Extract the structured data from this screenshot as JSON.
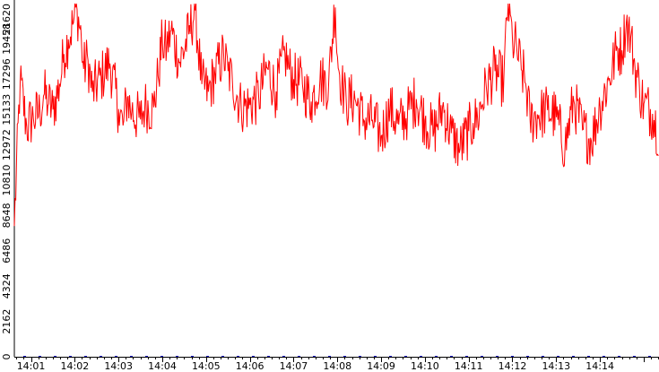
{
  "chart_data": {
    "type": "line",
    "title": "",
    "xlabel": "",
    "ylabel": "",
    "ylim": [
      0,
      21620
    ],
    "yticks": [
      "0",
      "2162",
      "4324",
      "6486",
      "8648",
      "10810",
      "12972",
      "15133",
      "17296",
      "19458",
      "21620"
    ],
    "xticks": [
      "14:01",
      "14:02",
      "14:03",
      "14:04",
      "14:05",
      "14:06",
      "14:07",
      "14:08",
      "14:09",
      "14:10",
      "14:11",
      "14:12",
      "14:13",
      "14:14"
    ],
    "xlim_minutes": [
      0.62,
      15.35
    ],
    "grid": false,
    "legend": "none",
    "colors": {
      "line": "#ff0000",
      "axis": "#000000",
      "baseline_dots": "#0000c0"
    },
    "series": [
      {
        "x_minutes": [
          0.62,
          0.75,
          0.9,
          1.05,
          1.2,
          1.3,
          1.4,
          1.5,
          1.65,
          1.75,
          1.85,
          1.95,
          2.05,
          2.15,
          2.2,
          2.3,
          2.4,
          2.6,
          2.8,
          3.0,
          3.1,
          3.2,
          3.3,
          3.5,
          3.6,
          3.8,
          3.9,
          4.0,
          4.1,
          4.2,
          4.4,
          4.6,
          4.75,
          4.9,
          5.05,
          5.2,
          5.4,
          5.5,
          5.6,
          5.8,
          6.0,
          6.2,
          6.4,
          6.6,
          6.8,
          6.9,
          7.0,
          7.2,
          7.4,
          7.6,
          7.8,
          7.95,
          8.0,
          8.1,
          8.2,
          8.4,
          8.6,
          8.8,
          9.0,
          9.2,
          9.4,
          9.6,
          9.8,
          10.0,
          10.2,
          10.4,
          10.6,
          10.8,
          11.0,
          11.1,
          11.2,
          11.4,
          11.6,
          11.8,
          11.9,
          12.0,
          12.1,
          12.2,
          12.3,
          12.4,
          12.6,
          12.8,
          13.0,
          13.2,
          13.4,
          13.6,
          13.8,
          14.0,
          14.2,
          14.4,
          14.5,
          14.6,
          14.7,
          14.8,
          14.9,
          15.0,
          15.2,
          15.35
        ],
        "values": [
          8000,
          16900,
          14100,
          14600,
          15000,
          16100,
          15500,
          15100,
          16600,
          18500,
          19400,
          20300,
          21300,
          19500,
          17600,
          18200,
          16200,
          17100,
          18000,
          15200,
          14100,
          15900,
          15000,
          14500,
          15400,
          15200,
          17100,
          19300,
          18900,
          20000,
          18000,
          19700,
          21300,
          16700,
          16200,
          17300,
          18500,
          17500,
          16900,
          15300,
          15400,
          15900,
          17700,
          16200,
          18600,
          17600,
          17000,
          16700,
          15600,
          17000,
          16700,
          21600,
          18400,
          16700,
          15600,
          15800,
          14500,
          14500,
          13500,
          15200,
          14200,
          14900,
          15800,
          14500,
          13700,
          15300,
          13700,
          12700,
          13800,
          14300,
          14600,
          16500,
          17500,
          16800,
          21700,
          19400,
          18800,
          17600,
          16800,
          14500,
          14800,
          15100,
          14700,
          12800,
          15700,
          13900,
          13200,
          15300,
          16900,
          18900,
          18700,
          20500,
          19600,
          17700,
          16500,
          15500,
          14900,
          13600
        ]
      }
    ]
  }
}
